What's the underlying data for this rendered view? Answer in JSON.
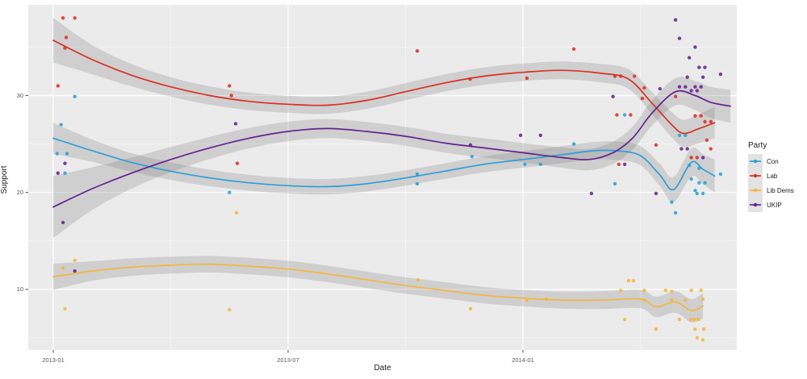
{
  "chart_data": {
    "type": "scatter",
    "subtype": "scatter_with_loess_smooth_and_confidence_ribbons",
    "title": "",
    "xlabel": "Date",
    "ylabel": "Support",
    "legend_title": "Party",
    "legend_position": "right",
    "grid": "major_and_minor_white_on_gray_panel",
    "panel_color": "#EBEBEB",
    "ribbon_color": "rgba(123,123,123,0.25)",
    "x_unit": "months_since_2013-01",
    "xlim": [
      -0.65,
      17.5
    ],
    "ylim": [
      3.6,
      39.4
    ],
    "x_ticks": [
      {
        "m": 0,
        "label": "2013-01"
      },
      {
        "m": 6,
        "label": "2013-07"
      },
      {
        "m": 12,
        "label": "2014-01"
      }
    ],
    "x_minor": [
      3,
      9,
      15
    ],
    "y_ticks": [
      10,
      20,
      30
    ],
    "y_minor": [
      5,
      15,
      25,
      35
    ],
    "series": [
      {
        "name": "Con",
        "color": "#2E9FD8",
        "smooth_line": [
          [
            0,
            25.6,
            1.6
          ],
          [
            1,
            24.3,
            1.15
          ],
          [
            2,
            23.1,
            0.95
          ],
          [
            3,
            22.2,
            0.9
          ],
          [
            4,
            21.5,
            0.85
          ],
          [
            5,
            21.0,
            0.82
          ],
          [
            6,
            20.7,
            0.8
          ],
          [
            7,
            20.6,
            0.8
          ],
          [
            8,
            20.9,
            0.8
          ],
          [
            9,
            21.5,
            0.8
          ],
          [
            10,
            22.2,
            0.8
          ],
          [
            11,
            22.9,
            0.82
          ],
          [
            12,
            23.4,
            0.85
          ],
          [
            13,
            23.9,
            0.88
          ],
          [
            13.8,
            24.3,
            0.9
          ],
          [
            14.4,
            24.3,
            0.95
          ],
          [
            15.0,
            23.8,
            1.0
          ],
          [
            15.5,
            21.8,
            1.15
          ],
          [
            15.85,
            20.3,
            1.3
          ],
          [
            16.3,
            23.1,
            1.45
          ],
          [
            16.6,
            22.4,
            1.55
          ],
          [
            16.9,
            21.7,
            1.7
          ]
        ],
        "points": [
          [
            0.1,
            24.0
          ],
          [
            0.2,
            27.0
          ],
          [
            0.3,
            22.0
          ],
          [
            0.35,
            24.0
          ],
          [
            0.55,
            29.9
          ],
          [
            4.5,
            20.0
          ],
          [
            9.3,
            20.9
          ],
          [
            9.3,
            21.9
          ],
          [
            10.7,
            23.7
          ],
          [
            12.05,
            22.9
          ],
          [
            12.45,
            22.9
          ],
          [
            13.3,
            25.0
          ],
          [
            14.35,
            20.9
          ],
          [
            14.6,
            28.0
          ],
          [
            15.8,
            19.0
          ],
          [
            15.9,
            17.9
          ],
          [
            16.0,
            25.9
          ],
          [
            16.15,
            25.9
          ],
          [
            16.25,
            22.8
          ],
          [
            16.5,
            22.5
          ],
          [
            16.3,
            21.4
          ],
          [
            16.5,
            21.0
          ],
          [
            16.65,
            21.0
          ],
          [
            16.4,
            20.2
          ],
          [
            16.45,
            19.9
          ],
          [
            16.6,
            19.9
          ],
          [
            17.05,
            21.9
          ]
        ]
      },
      {
        "name": "Lab",
        "color": "#DB3026",
        "smooth_line": [
          [
            0,
            35.7,
            2.3
          ],
          [
            1,
            33.7,
            1.5
          ],
          [
            2,
            32.1,
            1.15
          ],
          [
            3,
            30.9,
            1.0
          ],
          [
            4,
            30.0,
            0.95
          ],
          [
            5,
            29.4,
            0.9
          ],
          [
            6,
            29.1,
            0.88
          ],
          [
            7,
            29.0,
            0.88
          ],
          [
            8,
            29.5,
            0.88
          ],
          [
            9,
            30.4,
            0.88
          ],
          [
            10,
            31.3,
            0.88
          ],
          [
            11,
            32.0,
            0.9
          ],
          [
            12,
            32.4,
            0.9
          ],
          [
            13,
            32.6,
            0.92
          ],
          [
            14,
            32.3,
            0.95
          ],
          [
            14.7,
            31.7,
            1.0
          ],
          [
            15.3,
            29.2,
            1.15
          ],
          [
            15.8,
            27.0,
            1.3
          ],
          [
            16.1,
            26.1,
            1.4
          ],
          [
            16.5,
            26.6,
            1.5
          ],
          [
            16.9,
            27.2,
            1.6
          ]
        ],
        "points": [
          [
            0.12,
            31.0
          ],
          [
            0.25,
            38.0
          ],
          [
            0.3,
            34.9
          ],
          [
            0.33,
            36.0
          ],
          [
            0.55,
            38.0
          ],
          [
            4.5,
            31.0
          ],
          [
            4.55,
            30.0
          ],
          [
            4.7,
            23.0
          ],
          [
            9.3,
            34.6
          ],
          [
            10.65,
            31.7
          ],
          [
            12.1,
            31.8
          ],
          [
            13.3,
            34.8
          ],
          [
            14.35,
            32.0
          ],
          [
            14.5,
            32.0
          ],
          [
            14.85,
            32.0
          ],
          [
            14.4,
            28.0
          ],
          [
            14.75,
            28.0
          ],
          [
            14.45,
            22.9
          ],
          [
            15.05,
            29.7
          ],
          [
            15.1,
            30.8
          ],
          [
            15.4,
            24.9
          ],
          [
            15.9,
            29.9
          ],
          [
            16.4,
            27.9
          ],
          [
            16.55,
            27.9
          ],
          [
            16.65,
            27.3
          ],
          [
            16.8,
            27.3
          ],
          [
            16.7,
            25.4
          ],
          [
            16.8,
            24.5
          ],
          [
            16.3,
            23.6
          ],
          [
            16.45,
            23.6
          ]
        ]
      },
      {
        "name": "Lib Dems",
        "color": "#F2B73E",
        "smooth_line": [
          [
            0,
            11.3,
            1.35
          ],
          [
            1,
            11.9,
            1.0
          ],
          [
            2,
            12.3,
            0.9
          ],
          [
            3,
            12.5,
            0.87
          ],
          [
            4,
            12.6,
            0.85
          ],
          [
            5,
            12.4,
            0.85
          ],
          [
            6,
            12.1,
            0.85
          ],
          [
            7,
            11.6,
            0.85
          ],
          [
            8,
            11.0,
            0.85
          ],
          [
            9,
            10.4,
            0.85
          ],
          [
            10,
            9.9,
            0.85
          ],
          [
            11,
            9.4,
            0.85
          ],
          [
            12,
            9.1,
            0.85
          ],
          [
            13,
            8.9,
            0.88
          ],
          [
            14,
            8.9,
            0.92
          ],
          [
            15,
            9.0,
            0.95
          ],
          [
            15.4,
            8.2,
            1.05
          ],
          [
            15.9,
            8.7,
            1.1
          ],
          [
            16.3,
            7.8,
            1.2
          ],
          [
            16.6,
            8.3,
            1.3
          ]
        ],
        "points": [
          [
            0.25,
            12.2
          ],
          [
            0.3,
            8.0
          ],
          [
            0.55,
            13.0
          ],
          [
            4.5,
            7.9
          ],
          [
            4.68,
            17.9
          ],
          [
            9.32,
            11.0
          ],
          [
            10.66,
            8.0
          ],
          [
            12.1,
            8.9
          ],
          [
            12.6,
            9.0
          ],
          [
            14.5,
            9.9
          ],
          [
            14.7,
            10.9
          ],
          [
            14.82,
            10.9
          ],
          [
            15.1,
            9.9
          ],
          [
            15.1,
            8.9
          ],
          [
            15.65,
            9.9
          ],
          [
            15.8,
            9.8
          ],
          [
            15.8,
            8.9
          ],
          [
            16.3,
            9.9
          ],
          [
            16.55,
            9.9
          ],
          [
            16.15,
            8.9
          ],
          [
            16.6,
            9.0
          ],
          [
            14.6,
            6.9
          ],
          [
            16.0,
            6.9
          ],
          [
            16.28,
            6.9
          ],
          [
            16.38,
            6.9
          ],
          [
            16.48,
            6.9
          ],
          [
            15.4,
            5.9
          ],
          [
            16.4,
            5.9
          ],
          [
            16.62,
            5.9
          ],
          [
            16.45,
            5.0
          ],
          [
            16.6,
            4.8
          ]
        ]
      },
      {
        "name": "UKIP",
        "color": "#64248E",
        "smooth_line": [
          [
            0,
            18.5,
            3.2
          ],
          [
            1,
            20.4,
            2.2
          ],
          [
            2,
            22.0,
            1.6
          ],
          [
            3,
            23.4,
            1.3
          ],
          [
            4,
            24.6,
            1.15
          ],
          [
            5,
            25.6,
            1.05
          ],
          [
            6,
            26.3,
            1.0
          ],
          [
            7,
            26.6,
            0.98
          ],
          [
            8,
            26.3,
            0.98
          ],
          [
            9,
            25.8,
            0.98
          ],
          [
            10,
            25.1,
            0.98
          ],
          [
            11,
            24.6,
            1.0
          ],
          [
            12,
            24.1,
            1.0
          ],
          [
            13,
            23.6,
            1.05
          ],
          [
            13.7,
            23.4,
            1.1
          ],
          [
            14.3,
            24.1,
            1.15
          ],
          [
            14.8,
            25.6,
            1.2
          ],
          [
            15.3,
            28.2,
            1.3
          ],
          [
            15.9,
            30.4,
            1.4
          ],
          [
            16.4,
            30.0,
            1.5
          ],
          [
            16.8,
            29.3,
            1.6
          ],
          [
            17.3,
            28.9,
            1.7
          ]
        ],
        "points": [
          [
            0.12,
            22.0
          ],
          [
            0.3,
            23.0
          ],
          [
            0.25,
            16.9
          ],
          [
            0.55,
            11.9
          ],
          [
            4.66,
            27.1
          ],
          [
            10.66,
            24.9
          ],
          [
            11.94,
            25.9
          ],
          [
            12.45,
            25.9
          ],
          [
            13.75,
            19.9
          ],
          [
            14.3,
            29.9
          ],
          [
            14.6,
            22.9
          ],
          [
            15.4,
            19.9
          ],
          [
            15.5,
            30.7
          ],
          [
            15.9,
            37.8
          ],
          [
            16.0,
            35.9
          ],
          [
            16.25,
            33.9
          ],
          [
            16.4,
            35.0
          ],
          [
            16.2,
            31.9
          ],
          [
            16.6,
            31.9
          ],
          [
            16.5,
            32.9
          ],
          [
            16.65,
            32.9
          ],
          [
            16.0,
            30.9
          ],
          [
            16.15,
            30.9
          ],
          [
            16.4,
            30.9
          ],
          [
            16.55,
            30.9
          ],
          [
            16.3,
            30.5
          ],
          [
            16.45,
            30.5
          ],
          [
            16.05,
            24.5
          ],
          [
            16.2,
            24.5
          ],
          [
            16.6,
            23.6
          ],
          [
            17.05,
            32.2
          ]
        ]
      }
    ]
  }
}
